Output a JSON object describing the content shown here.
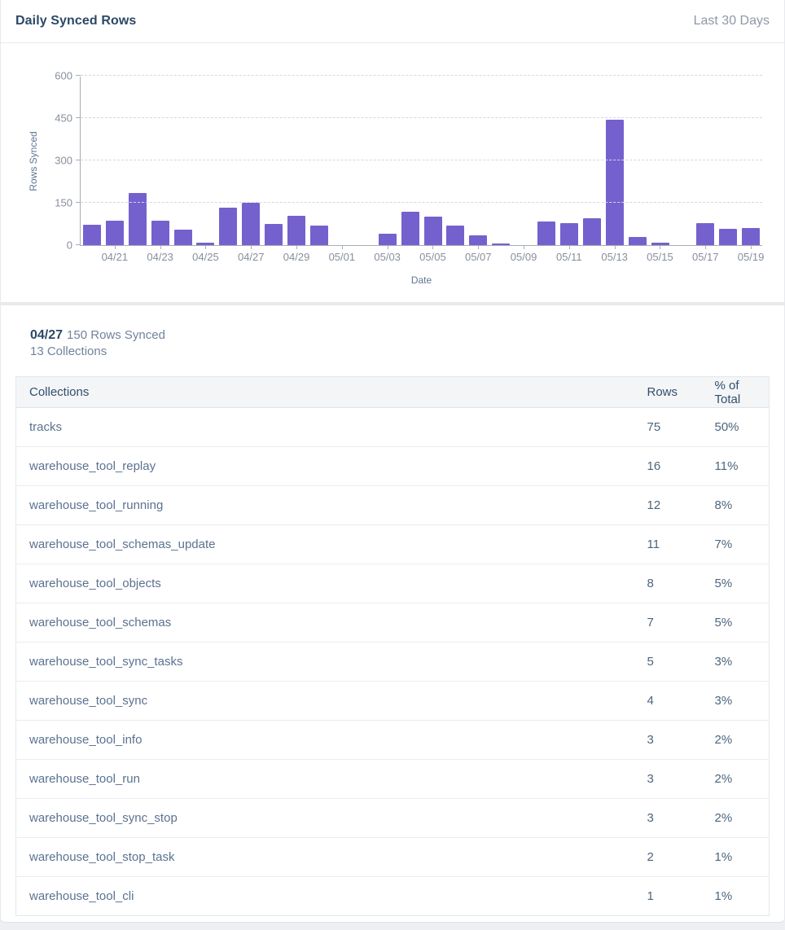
{
  "header": {
    "title": "Daily Synced Rows",
    "range": "Last 30 Days"
  },
  "chart_data": {
    "type": "bar",
    "x": [
      "04/20",
      "04/21",
      "04/22",
      "04/23",
      "04/24",
      "04/25",
      "04/26",
      "04/27",
      "04/28",
      "04/29",
      "04/30",
      "05/01",
      "05/02",
      "05/03",
      "05/04",
      "05/05",
      "05/06",
      "05/07",
      "05/08",
      "05/09",
      "05/10",
      "05/11",
      "05/12",
      "05/13",
      "05/14",
      "05/15",
      "05/16",
      "05/17",
      "05/18",
      "05/19"
    ],
    "values": [
      72,
      88,
      185,
      88,
      55,
      10,
      133,
      150,
      76,
      103,
      70,
      0,
      0,
      40,
      118,
      100,
      69,
      34,
      5,
      0,
      84,
      79,
      94,
      443,
      30,
      8,
      0,
      77,
      58,
      61
    ],
    "labeled_ticks": [
      "04/21",
      "04/23",
      "04/25",
      "04/27",
      "04/29",
      "05/01",
      "05/03",
      "05/05",
      "05/07",
      "05/09",
      "05/11",
      "05/13",
      "05/15",
      "05/17",
      "05/19"
    ],
    "title": "Daily Synced Rows",
    "xlabel": "Date",
    "ylabel": "Rows Synced",
    "ylim": [
      0,
      600
    ],
    "yticks": [
      0,
      150,
      300,
      450,
      600
    ],
    "grid": "dashed-horizontal",
    "bar_color": "#7561ce"
  },
  "selection": {
    "date": "04/27",
    "summary": "150 Rows Synced",
    "collections": "13 Collections"
  },
  "table": {
    "columns": {
      "name": "Collections",
      "rows": "Rows",
      "pct": "% of Total"
    },
    "pct_header_lines": [
      "% of",
      "Total"
    ],
    "rows": [
      {
        "name": "tracks",
        "rows": "75",
        "pct": "50%"
      },
      {
        "name": "warehouse_tool_replay",
        "rows": "16",
        "pct": "11%"
      },
      {
        "name": "warehouse_tool_running",
        "rows": "12",
        "pct": "8%"
      },
      {
        "name": "warehouse_tool_schemas_update",
        "rows": "11",
        "pct": "7%"
      },
      {
        "name": "warehouse_tool_objects",
        "rows": "8",
        "pct": "5%"
      },
      {
        "name": "warehouse_tool_schemas",
        "rows": "7",
        "pct": "5%"
      },
      {
        "name": "warehouse_tool_sync_tasks",
        "rows": "5",
        "pct": "3%"
      },
      {
        "name": "warehouse_tool_sync",
        "rows": "4",
        "pct": "3%"
      },
      {
        "name": "warehouse_tool_info",
        "rows": "3",
        "pct": "2%"
      },
      {
        "name": "warehouse_tool_run",
        "rows": "3",
        "pct": "2%"
      },
      {
        "name": "warehouse_tool_sync_stop",
        "rows": "3",
        "pct": "2%"
      },
      {
        "name": "warehouse_tool_stop_task",
        "rows": "2",
        "pct": "1%"
      },
      {
        "name": "warehouse_tool_cli",
        "rows": "1",
        "pct": "1%"
      }
    ]
  },
  "colors": {
    "bar": "#7561ce",
    "title_text": "#2c4866",
    "muted_text": "#8e98a7",
    "table_text": "#5b7290",
    "header_bg": "#f4f5f7"
  }
}
